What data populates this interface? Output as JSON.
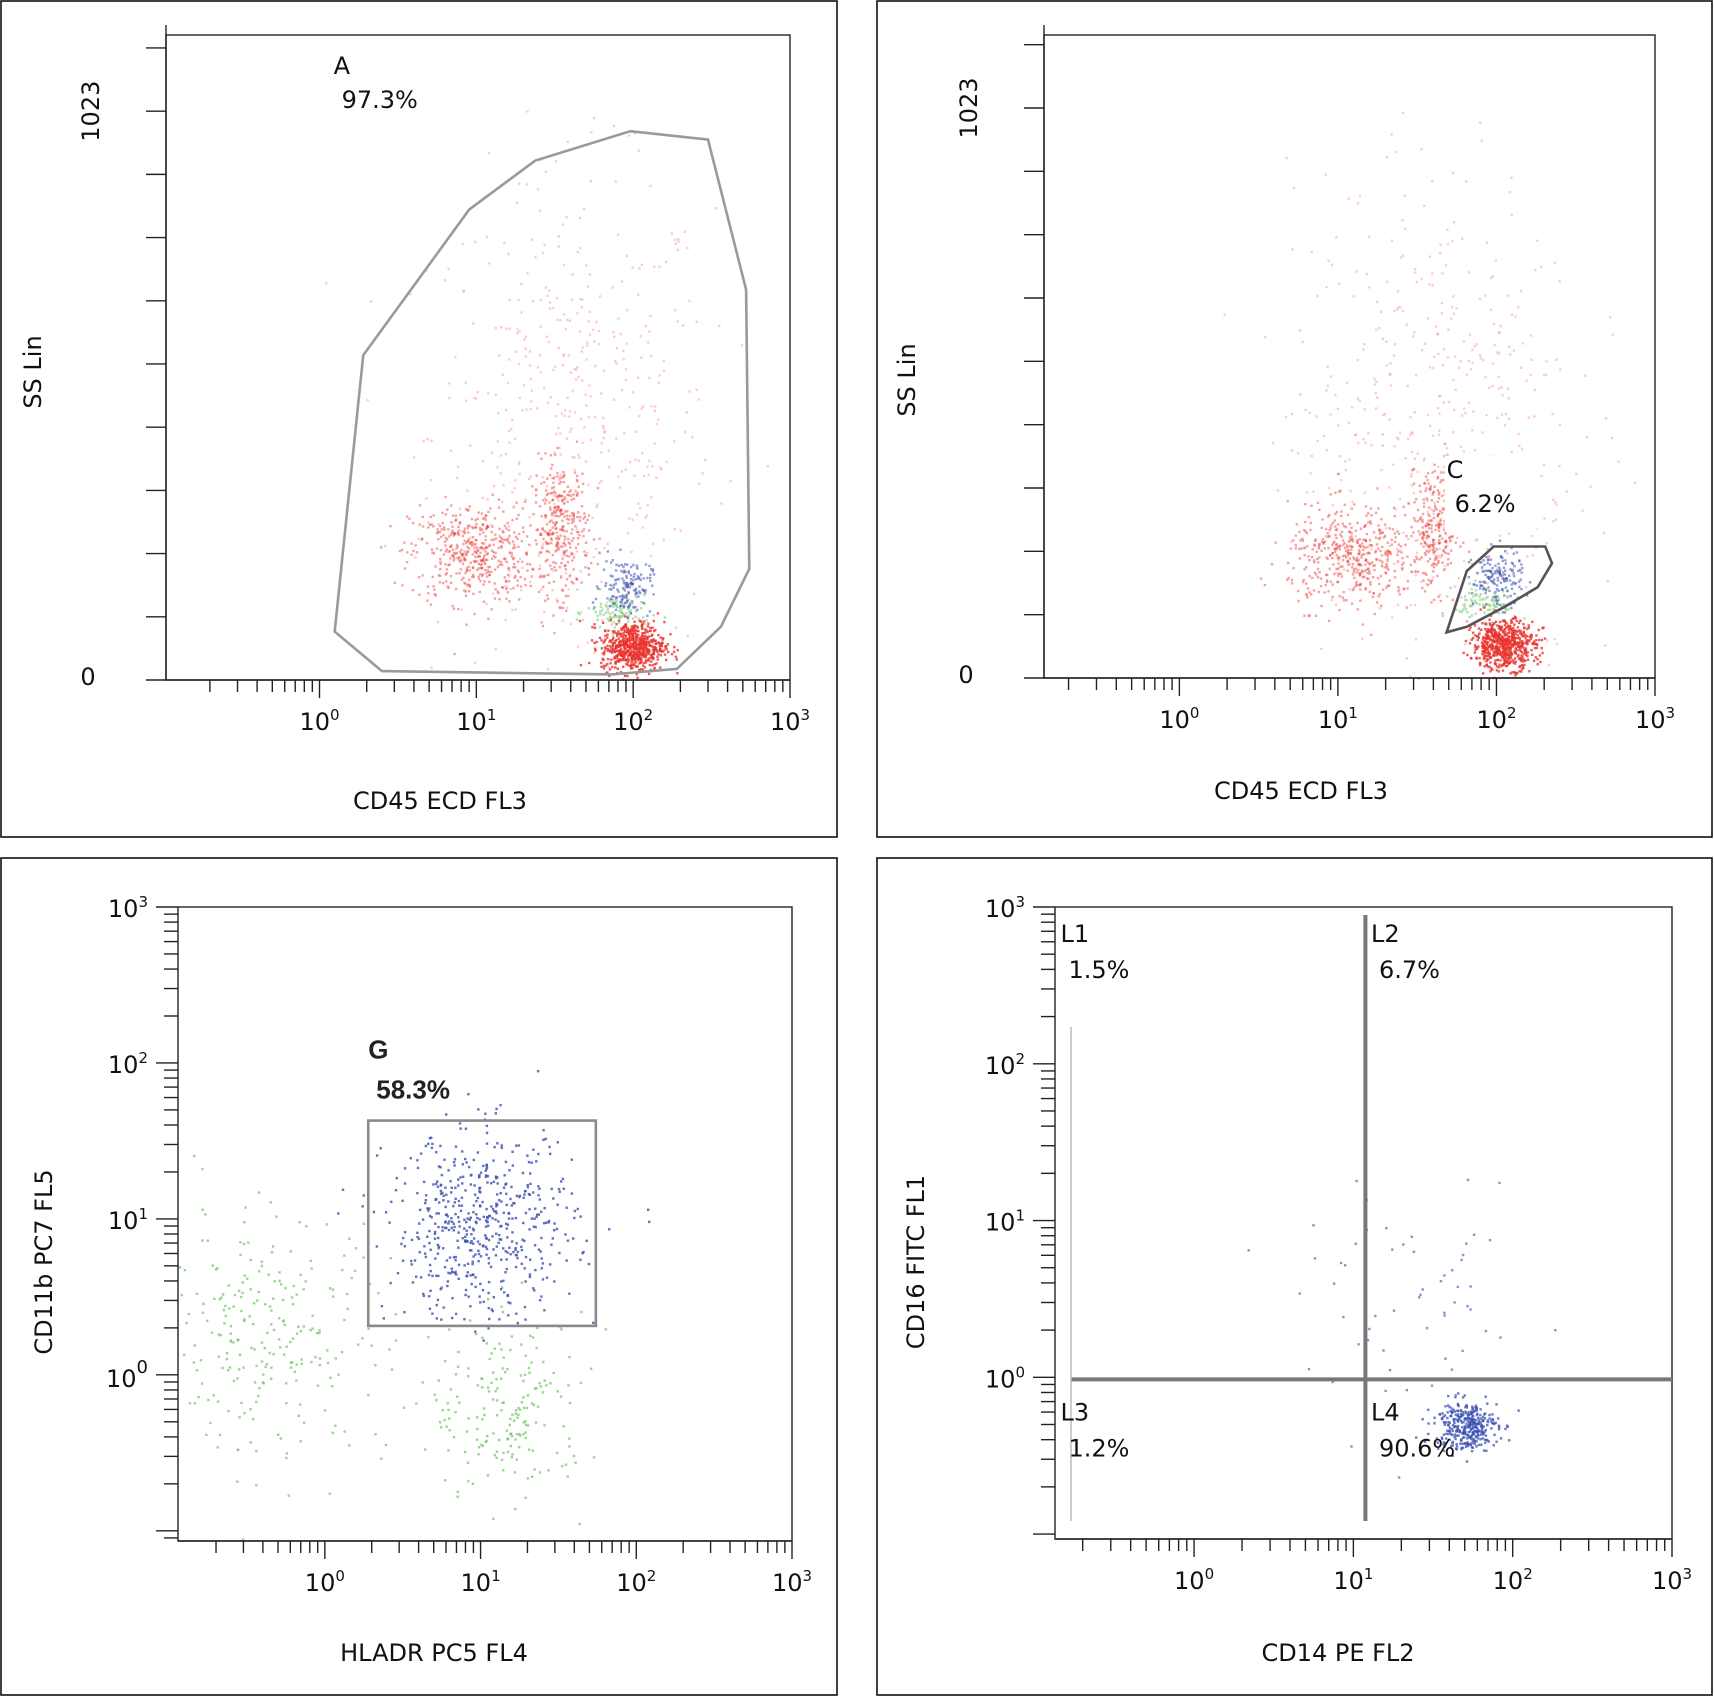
{
  "chart_data": [
    {
      "type": "scatter",
      "xlabel": "CD45 ECD FL3",
      "ylabel": "SS Lin",
      "xscale": "log",
      "yscale": "linear",
      "xlim": [
        0.105,
        1000
      ],
      "ylim": [
        0,
        1160
      ],
      "xticks": [
        {
          "base": "10",
          "exp": "0",
          "v": 1
        },
        {
          "base": "10",
          "exp": "1",
          "v": 10
        },
        {
          "base": "10",
          "exp": "2",
          "v": 100
        },
        {
          "base": "10",
          "exp": "3",
          "v": 1000
        }
      ],
      "yticklabels": [
        {
          "text": "1023",
          "v": 1023
        },
        {
          "text": "0",
          "v": 0
        }
      ],
      "gate": {
        "name": "A",
        "percent": "97.3%",
        "shape": "polygon",
        "color": "#9a9a9a",
        "points": [
          [
            1.9,
            584
          ],
          [
            9.0,
            846
          ],
          [
            23.7,
            934
          ],
          [
            96,
            987
          ],
          [
            300,
            972
          ],
          [
            525,
            702
          ],
          [
            550,
            200
          ],
          [
            363,
            96
          ],
          [
            190,
            20
          ],
          [
            73,
            10
          ],
          [
            2.5,
            16
          ],
          [
            1.25,
            87
          ]
        ],
        "label_at": [
          1.23,
          1090
        ]
      },
      "populations": [
        {
          "color": "#f07070",
          "n": 500,
          "cx": 40,
          "cy": 450,
          "sx": 0.45,
          "sy": 230,
          "op": 0.35
        },
        {
          "color": "#e8332e",
          "n": 450,
          "cx": 9.3,
          "cy": 230,
          "sx": 0.2,
          "sy": 45,
          "op": 0.45
        },
        {
          "color": "#e8332e",
          "n": 300,
          "cx": 34,
          "cy": 275,
          "sx": 0.09,
          "sy": 60,
          "op": 0.45
        },
        {
          "color": "#8fd68a",
          "n": 100,
          "cx": 79,
          "cy": 122,
          "sx": 0.1,
          "sy": 18,
          "op": 0.7
        },
        {
          "color": "#3a4fb0",
          "n": 150,
          "cx": 89,
          "cy": 171,
          "sx": 0.08,
          "sy": 25,
          "op": 0.55
        },
        {
          "color": "#e8332e",
          "n": 600,
          "cx": 98,
          "cy": 62,
          "sx": 0.1,
          "sy": 22,
          "op": 0.8
        }
      ]
    },
    {
      "type": "scatter",
      "xlabel": "CD45 ECD FL3",
      "ylabel": "SS Lin",
      "xscale": "log",
      "yscale": "linear",
      "xlim": [
        0.14,
        1000
      ],
      "ylim": [
        0,
        1154
      ],
      "xticks": [
        {
          "base": "10",
          "exp": "0",
          "v": 1
        },
        {
          "base": "10",
          "exp": "1",
          "v": 10
        },
        {
          "base": "10",
          "exp": "2",
          "v": 100
        },
        {
          "base": "10",
          "exp": "3",
          "v": 1000
        }
      ],
      "yticklabels": [
        {
          "text": "1023",
          "v": 1023
        },
        {
          "text": "0",
          "v": 0
        }
      ],
      "gate": {
        "name": "C",
        "percent": "6.2%",
        "shape": "polygon",
        "color": "#555555",
        "points": [
          [
            48.5,
            82
          ],
          [
            65,
            192
          ],
          [
            96,
            236
          ],
          [
            203,
            236
          ],
          [
            224,
            206
          ],
          [
            182,
            163
          ],
          [
            113,
            128
          ],
          [
            65,
            92
          ]
        ],
        "label_at": [
          48.5,
          359
        ],
        "label_box": true
      },
      "populations": [
        {
          "color": "#f07070",
          "n": 500,
          "cx": 40,
          "cy": 450,
          "sx": 0.45,
          "sy": 230,
          "op": 0.35
        },
        {
          "color": "#e8332e",
          "n": 450,
          "cx": 12,
          "cy": 220,
          "sx": 0.2,
          "sy": 45,
          "op": 0.45
        },
        {
          "color": "#e8332e",
          "n": 250,
          "cx": 40,
          "cy": 270,
          "sx": 0.08,
          "sy": 55,
          "op": 0.45
        },
        {
          "color": "#8fd68a",
          "n": 100,
          "cx": 85,
          "cy": 135,
          "sx": 0.1,
          "sy": 18,
          "op": 0.7
        },
        {
          "color": "#3a4fb0",
          "n": 150,
          "cx": 100,
          "cy": 180,
          "sx": 0.08,
          "sy": 25,
          "op": 0.55
        },
        {
          "color": "#e8332e",
          "n": 600,
          "cx": 110,
          "cy": 62,
          "sx": 0.1,
          "sy": 22,
          "op": 0.8
        }
      ]
    },
    {
      "type": "scatter",
      "xlabel": "HLADR PC5 FL4",
      "ylabel": "CD11b PC7 FL5",
      "xscale": "log",
      "yscale": "log",
      "xlim": [
        0.114,
        1000
      ],
      "ylim": [
        0.086,
        1000
      ],
      "xticks": [
        {
          "base": "10",
          "exp": "0",
          "v": 1
        },
        {
          "base": "10",
          "exp": "1",
          "v": 10
        },
        {
          "base": "10",
          "exp": "2",
          "v": 100
        },
        {
          "base": "10",
          "exp": "3",
          "v": 1000
        }
      ],
      "yticks": [
        {
          "base": "10",
          "exp": "3",
          "v": 1000
        },
        {
          "base": "10",
          "exp": "2",
          "v": 100
        },
        {
          "base": "10",
          "exp": "1",
          "v": 10
        },
        {
          "base": "10",
          "exp": "0",
          "v": 1,
          "large": true
        }
      ],
      "gate": {
        "name": "G",
        "percent": "58.3%",
        "shape": "rect",
        "color": "#8a8a8a",
        "points": [
          [
            1.9,
            2.06
          ],
          [
            55,
            42.7
          ]
        ],
        "label_at": [
          1.9,
          107
        ],
        "bold": true
      },
      "populations": [
        {
          "color": "#6cc45f",
          "n": 260,
          "cx": 0.4,
          "cy": 1.9,
          "sx": 0.4,
          "sy": 0.4,
          "op": 0.7
        },
        {
          "color": "#6cc45f",
          "n": 200,
          "cx": 15,
          "cy": 0.6,
          "sx": 0.25,
          "sy": 0.3,
          "op": 0.7
        },
        {
          "color": "#3a4fb0",
          "n": 550,
          "cx": 10,
          "cy": 9.2,
          "sx": 0.3,
          "sy": 0.3,
          "op": 0.8
        }
      ]
    },
    {
      "type": "scatter",
      "xlabel": "CD14 PE FL2",
      "ylabel": "CD16 FITC FL1",
      "xscale": "log",
      "yscale": "log",
      "xlim": [
        0.134,
        1000
      ],
      "ylim": [
        0.093,
        1000
      ],
      "xticks": [
        {
          "base": "10",
          "exp": "0",
          "v": 1
        },
        {
          "base": "10",
          "exp": "1",
          "v": 10
        },
        {
          "base": "10",
          "exp": "2",
          "v": 100
        },
        {
          "base": "10",
          "exp": "3",
          "v": 1000
        }
      ],
      "yticks": [
        {
          "base": "10",
          "exp": "3",
          "v": 1000
        },
        {
          "base": "10",
          "exp": "2",
          "v": 100
        },
        {
          "base": "10",
          "exp": "1",
          "v": 10
        },
        {
          "base": "10",
          "exp": "0",
          "v": 1
        }
      ],
      "quadrant": {
        "x": 11.9,
        "y": 0.97,
        "color": "#777777",
        "labels": [
          {
            "name": "L1",
            "percent": "1.5%",
            "at": [
              0.145,
              600
            ]
          },
          {
            "name": "L2",
            "percent": "6.7%",
            "at": [
              12.9,
              600
            ]
          },
          {
            "name": "L3",
            "percent": "1.2%",
            "at": [
              0.145,
              0.53
            ]
          },
          {
            "name": "L4",
            "percent": "90.6%",
            "at": [
              12.9,
              0.53
            ]
          }
        ]
      },
      "populations": [
        {
          "color": "#3a4fb0",
          "n": 60,
          "cx": 25,
          "cy": 2.5,
          "sx": 0.35,
          "sy": 0.35,
          "op": 0.6
        },
        {
          "color": "#3a4fb0",
          "n": 350,
          "cx": 50,
          "cy": 0.5,
          "sx": 0.1,
          "sy": 0.08,
          "op": 0.75
        }
      ]
    }
  ]
}
